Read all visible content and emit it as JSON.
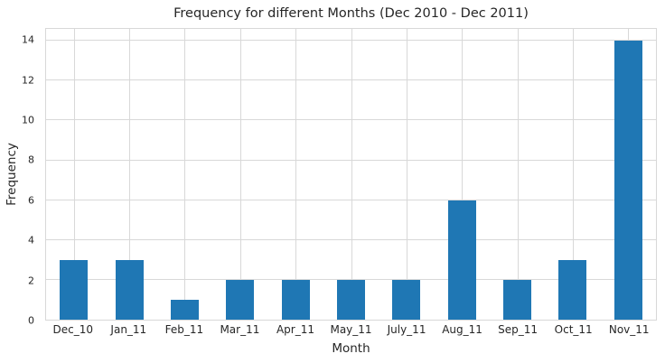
{
  "chart_data": {
    "type": "bar",
    "title": "Frequency for different Months (Dec 2010 - Dec 2011)",
    "xlabel": "Month",
    "ylabel": "Frequency",
    "categories": [
      "Dec_10",
      "Jan_11",
      "Feb_11",
      "Mar_11",
      "Apr_11",
      "May_11",
      "July_11",
      "Aug_11",
      "Sep_11",
      "Oct_11",
      "Nov_11"
    ],
    "values": [
      3,
      3,
      1,
      2,
      2,
      2,
      2,
      6,
      2,
      3,
      14
    ],
    "yticks": [
      0,
      2,
      4,
      6,
      8,
      10,
      12,
      14
    ],
    "ylim": [
      0,
      14.6
    ],
    "grid": true,
    "legend": "none",
    "colors": {
      "bar": "#1f77b4",
      "grid": "#d8d8d8",
      "text": "#262626",
      "background": "#ffffff"
    }
  }
}
